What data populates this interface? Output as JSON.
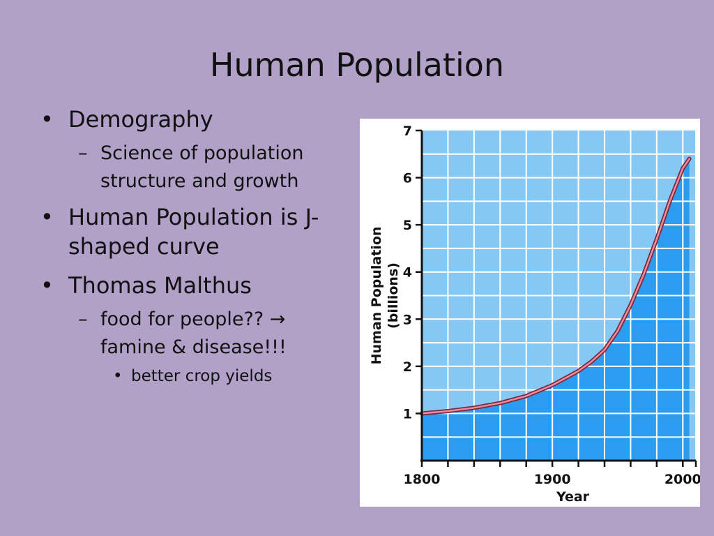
{
  "slide": {
    "title": "Human Population",
    "bullets": [
      {
        "text": "Demography",
        "sub": [
          "Science of population structure and growth"
        ]
      },
      {
        "text": "Human Population is J-shaped curve",
        "sub": []
      },
      {
        "text": "Thomas Malthus",
        "sub": [
          "food for people?? → famine & disease!!!"
        ],
        "subsub": [
          "better crop yields"
        ]
      }
    ],
    "markers": {
      "level1": "•",
      "level2": "–",
      "level3": "•"
    }
  },
  "chart_data": {
    "type": "area",
    "title": "",
    "xlabel": "Year",
    "ylabel_lines": [
      "Human Population",
      "(billions)"
    ],
    "xlim": [
      1800,
      2010
    ],
    "ylim": [
      0,
      7
    ],
    "xticks": [
      1800,
      1900,
      2000
    ],
    "yticks": [
      1,
      2,
      3,
      4,
      5,
      6,
      7
    ],
    "grid": true,
    "colors": {
      "plot_bg": "#86c8f4",
      "fill": "#2b9df0",
      "grid": "#ffffff",
      "curve_fill": "#f08aa0",
      "curve_stroke": "#7a2a3c",
      "band": "#5cb3f0"
    },
    "series": [
      {
        "x": [
          1800,
          1820,
          1840,
          1860,
          1880,
          1900,
          1920,
          1930,
          1940,
          1950,
          1960,
          1970,
          1980,
          1990,
          2000,
          2005
        ],
        "values": [
          1.0,
          1.05,
          1.12,
          1.22,
          1.37,
          1.6,
          1.9,
          2.1,
          2.35,
          2.75,
          3.3,
          3.95,
          4.7,
          5.5,
          6.2,
          6.4
        ]
      }
    ]
  }
}
